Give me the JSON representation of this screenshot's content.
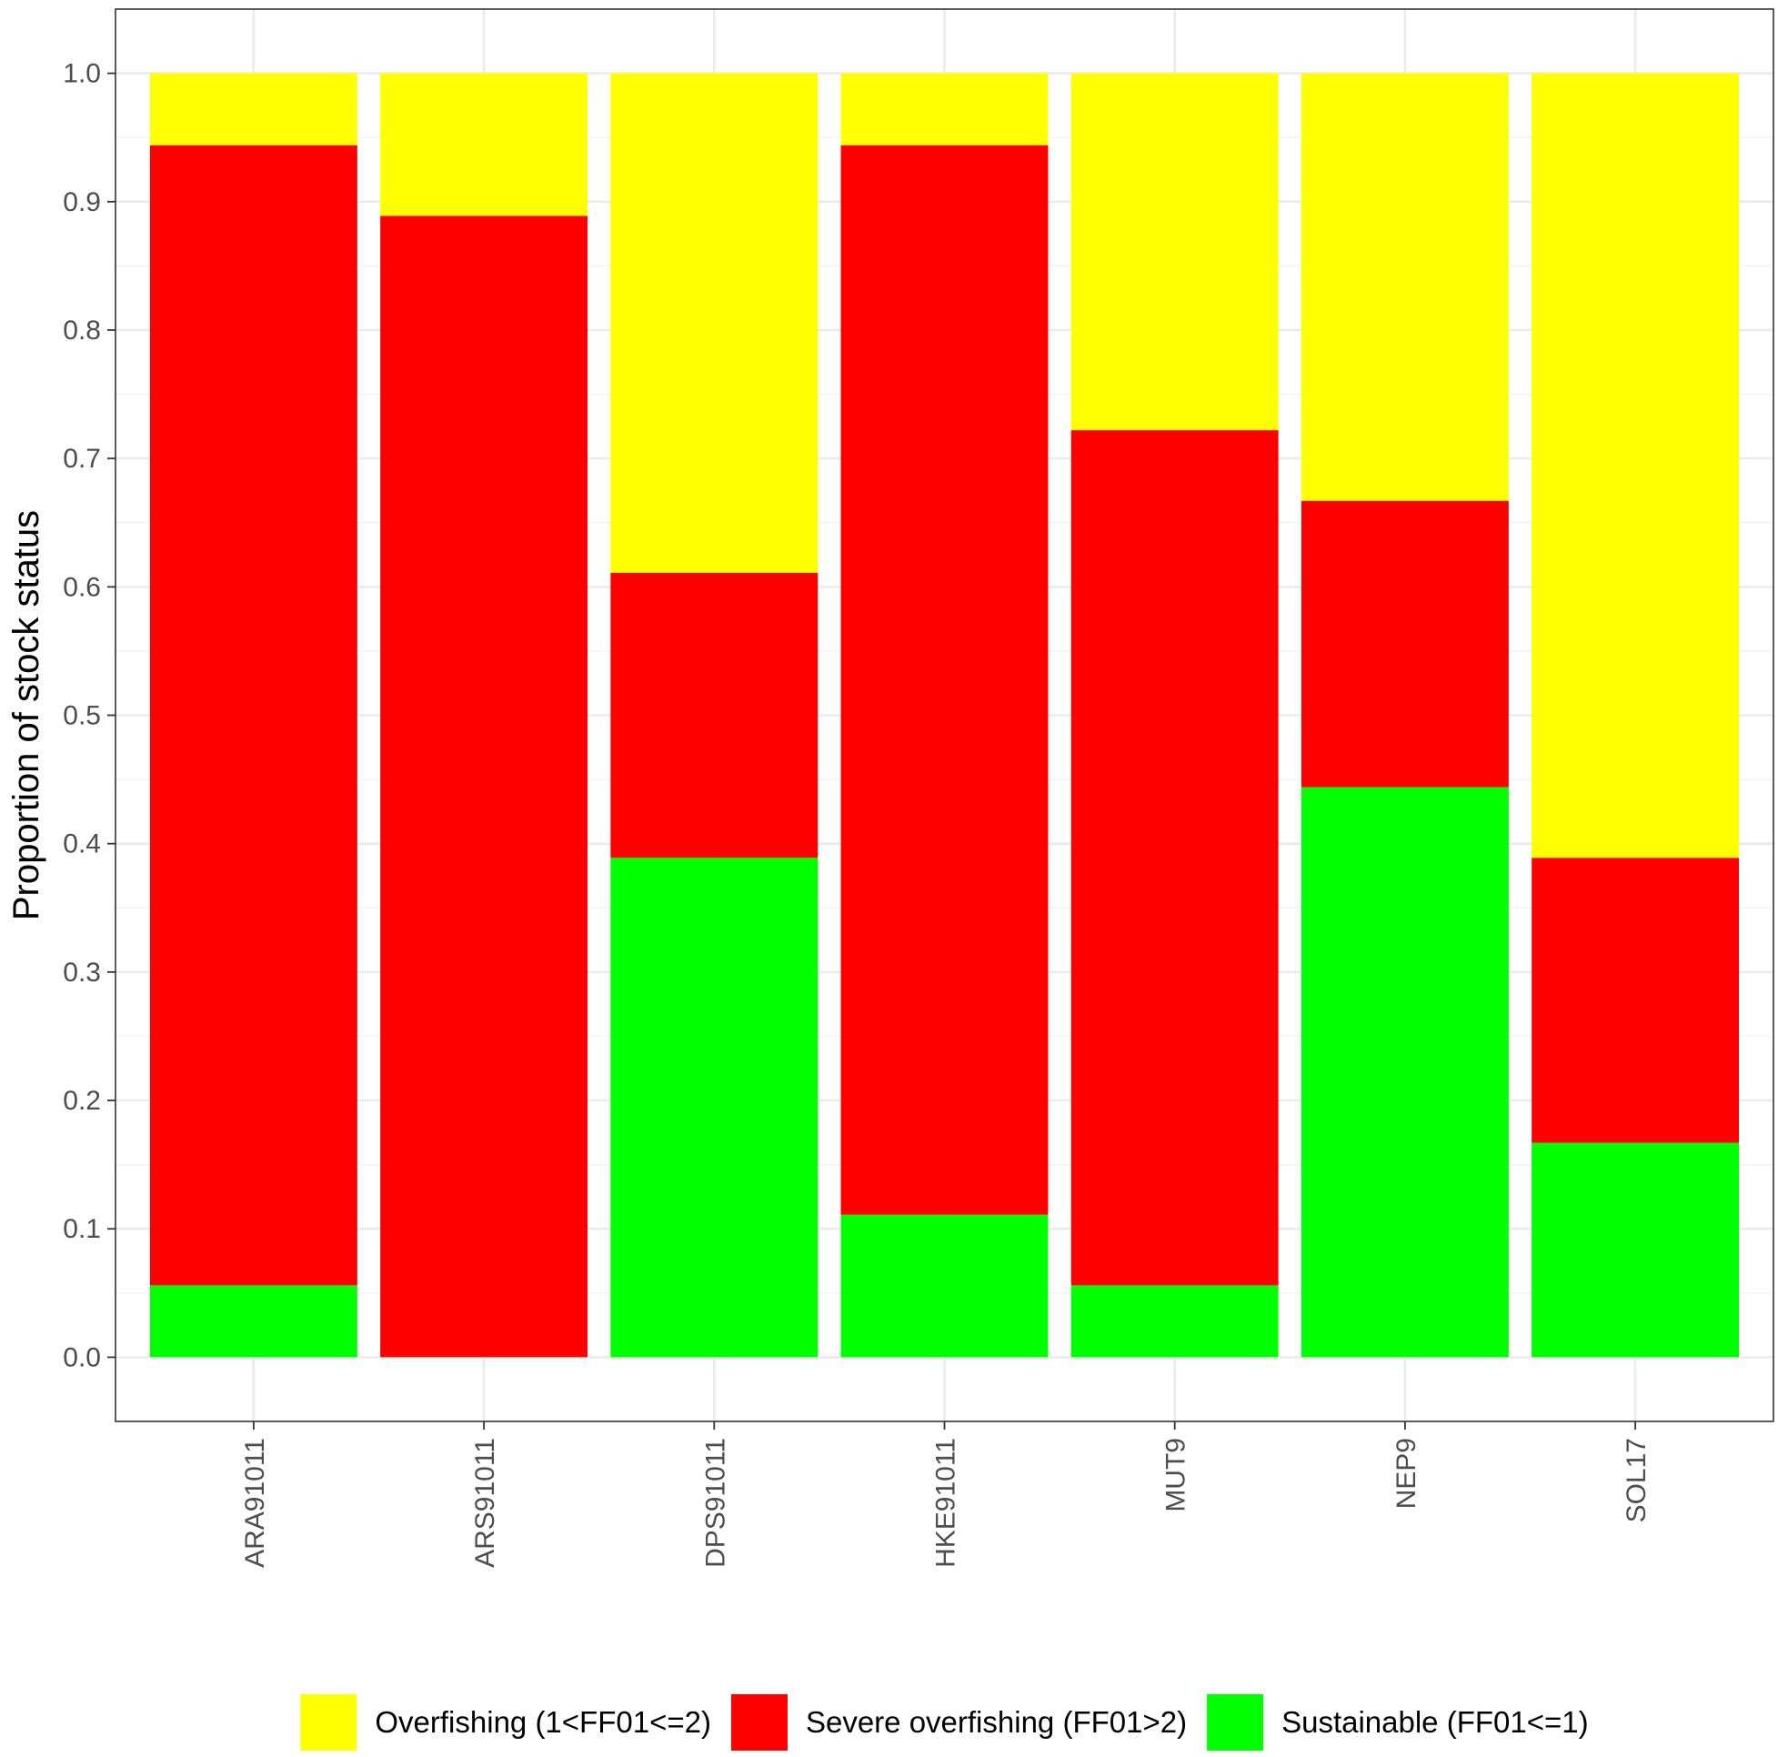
{
  "chart_data": {
    "type": "bar",
    "stacked": true,
    "categories": [
      "ARA91011",
      "ARS91011",
      "DPS91011",
      "HKE91011",
      "MUT9",
      "NEP9",
      "SOL17"
    ],
    "series": [
      {
        "name": "Sustainable (FF01<=1)",
        "color": "#00ff00",
        "values": [
          0.056,
          0.0,
          0.389,
          0.111,
          0.056,
          0.444,
          0.167
        ]
      },
      {
        "name": "Severe overfishing (FF01>2)",
        "color": "#ff0000",
        "values": [
          0.888,
          0.889,
          0.222,
          0.833,
          0.666,
          0.223,
          0.222
        ]
      },
      {
        "name": "Overfishing (1<FF01<=2)",
        "color": "#ffff00",
        "values": [
          0.056,
          0.111,
          0.389,
          0.056,
          0.278,
          0.333,
          0.611
        ]
      }
    ],
    "legend_order": [
      "Overfishing (1<FF01<=2)",
      "Severe overfishing (FF01>2)",
      "Sustainable (FF01<=1)"
    ],
    "ylabel": "Proportion of stock status",
    "xlabel": "",
    "ylim": [
      -0.05,
      1.05
    ],
    "yticks": [
      "0.0",
      "0.1",
      "0.2",
      "0.3",
      "0.4",
      "0.5",
      "0.6",
      "0.7",
      "0.8",
      "0.9",
      "1.0"
    ],
    "grid": true,
    "legend_position": "bottom",
    "theme": "bw"
  }
}
